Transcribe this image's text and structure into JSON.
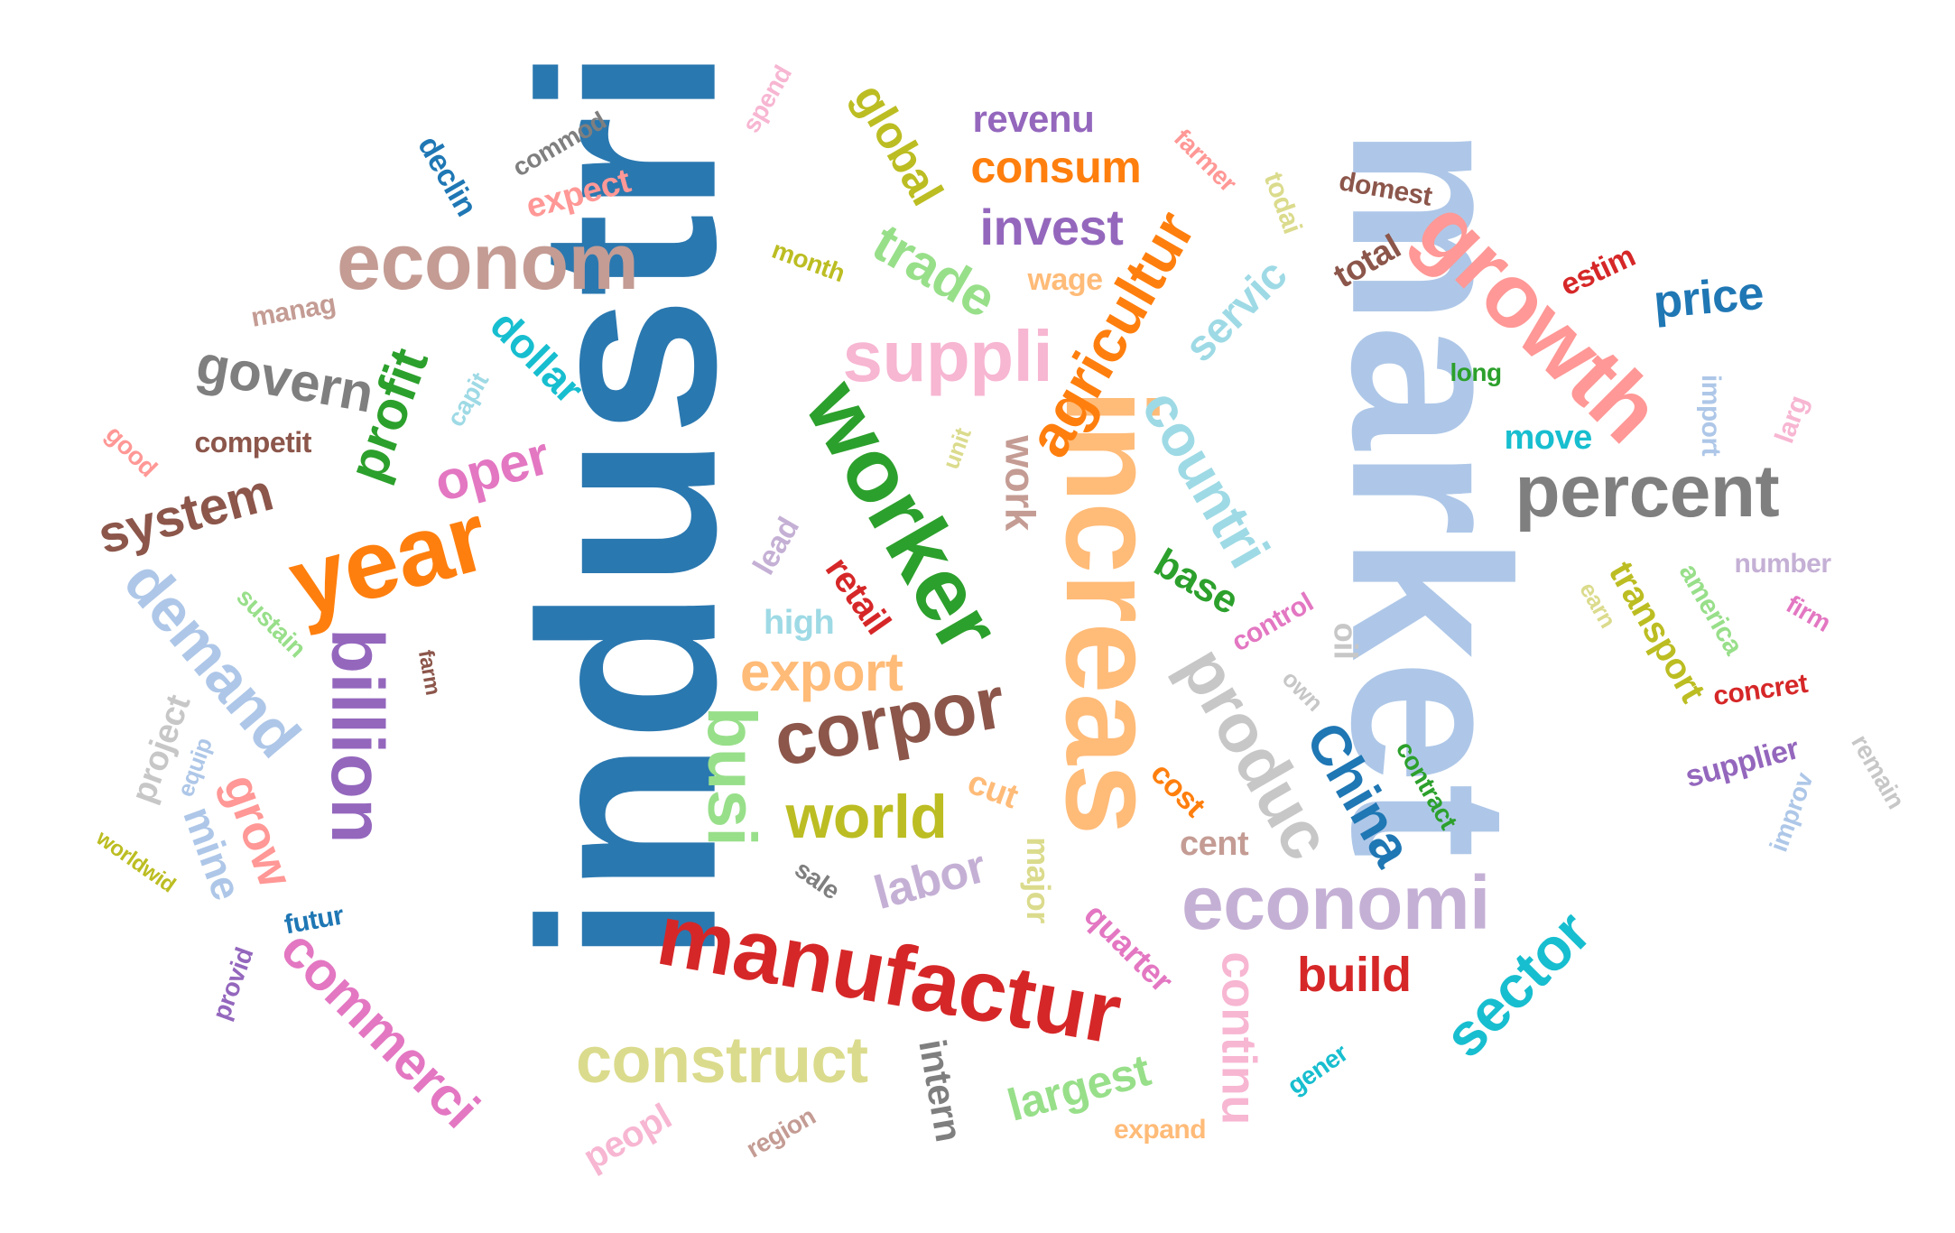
{
  "words": [
    {
      "text": "industri",
      "color": "#2a78b0"
    },
    {
      "text": "market",
      "color": "#aec7e8"
    },
    {
      "text": "increas",
      "color": "#ffbb78"
    },
    {
      "text": "worker",
      "color": "#2ca02c"
    },
    {
      "text": "year",
      "color": "#ff7f0e"
    },
    {
      "text": "growth",
      "color": "#ff9896"
    },
    {
      "text": "manufactur",
      "color": "#d62728"
    },
    {
      "text": "econom",
      "color": "#c49c94"
    },
    {
      "text": "percent",
      "color": "#7f7f7f"
    },
    {
      "text": "economi",
      "color": "#c5b0d5"
    },
    {
      "text": "corpor",
      "color": "#8c564b"
    },
    {
      "text": "billion",
      "color": "#9467bd"
    },
    {
      "text": "suppli",
      "color": "#f7b6d2"
    },
    {
      "text": "construct",
      "color": "#dbdb8d"
    },
    {
      "text": "produc",
      "color": "#c7c7c7"
    },
    {
      "text": "demand",
      "color": "#aec7e8"
    },
    {
      "text": "countri",
      "color": "#9edae5"
    },
    {
      "text": "agricultur",
      "color": "#ff7f0e"
    },
    {
      "text": "busi",
      "color": "#98df8a"
    },
    {
      "text": "world",
      "color": "#bcbd22"
    },
    {
      "text": "sector",
      "color": "#17becf"
    },
    {
      "text": "China",
      "color": "#1f77b4"
    },
    {
      "text": "commerci",
      "color": "#e377c2"
    },
    {
      "text": "trade",
      "color": "#98df8a"
    },
    {
      "text": "export",
      "color": "#ffbb78"
    },
    {
      "text": "system",
      "color": "#8c564b"
    },
    {
      "text": "oper",
      "color": "#e377c2"
    },
    {
      "text": "profit",
      "color": "#2ca02c"
    },
    {
      "text": "govern",
      "color": "#7f7f7f"
    },
    {
      "text": "invest",
      "color": "#9467bd"
    },
    {
      "text": "price",
      "color": "#1f77b4"
    },
    {
      "text": "consum",
      "color": "#ff7f0e"
    },
    {
      "text": "continu",
      "color": "#f7b6d2"
    },
    {
      "text": "labor",
      "color": "#c5b0d5"
    },
    {
      "text": "build",
      "color": "#d62728"
    },
    {
      "text": "global",
      "color": "#bcbd22"
    },
    {
      "text": "largest",
      "color": "#98df8a"
    },
    {
      "text": "grow",
      "color": "#ff9896"
    },
    {
      "text": "servic",
      "color": "#9edae5"
    },
    {
      "text": "work",
      "color": "#c49c94"
    },
    {
      "text": "revenu",
      "color": "#9467bd"
    },
    {
      "text": "dollar",
      "color": "#17becf"
    },
    {
      "text": "mine",
      "color": "#aec7e8"
    },
    {
      "text": "base",
      "color": "#2ca02c"
    },
    {
      "text": "intern",
      "color": "#7f7f7f"
    },
    {
      "text": "transport",
      "color": "#bcbd22"
    },
    {
      "text": "retail",
      "color": "#d62728"
    },
    {
      "text": "quarter",
      "color": "#e377c2"
    },
    {
      "text": "major",
      "color": "#dbdb8d"
    },
    {
      "text": "total",
      "color": "#8c564b"
    },
    {
      "text": "expect",
      "color": "#ff9896"
    },
    {
      "text": "cut",
      "color": "#ffbb78"
    },
    {
      "text": "project",
      "color": "#c7c7c7"
    },
    {
      "text": "high",
      "color": "#9edae5"
    },
    {
      "text": "cent",
      "color": "#c49c94"
    },
    {
      "text": "supplier",
      "color": "#9467bd"
    },
    {
      "text": "declin",
      "color": "#1f77b4"
    },
    {
      "text": "move",
      "color": "#17becf"
    },
    {
      "text": "america",
      "color": "#98df8a"
    },
    {
      "text": "lead",
      "color": "#c5b0d5"
    },
    {
      "text": "estim",
      "color": "#d62728"
    },
    {
      "text": "concret",
      "color": "#d62728"
    },
    {
      "text": "peopl",
      "color": "#f7b6d2"
    },
    {
      "text": "competit",
      "color": "#8c564b"
    },
    {
      "text": "domest",
      "color": "#8c564b"
    },
    {
      "text": "manag",
      "color": "#c49c94"
    },
    {
      "text": "contract",
      "color": "#2ca02c"
    },
    {
      "text": "cost",
      "color": "#ff7f0e"
    },
    {
      "text": "todai",
      "color": "#dbdb8d"
    },
    {
      "text": "number",
      "color": "#c5b0d5"
    },
    {
      "text": "futur",
      "color": "#1f77b4"
    },
    {
      "text": "control",
      "color": "#e377c2"
    },
    {
      "text": "import",
      "color": "#aec7e8"
    },
    {
      "text": "sustain",
      "color": "#98df8a"
    },
    {
      "text": "month",
      "color": "#bcbd22"
    },
    {
      "text": "wage",
      "color": "#ffbb78"
    },
    {
      "text": "farmer",
      "color": "#ff9896"
    },
    {
      "text": "commod",
      "color": "#7f7f7f"
    },
    {
      "text": "long",
      "color": "#2ca02c"
    },
    {
      "text": "remain",
      "color": "#c7c7c7"
    },
    {
      "text": "improv",
      "color": "#aec7e8"
    },
    {
      "text": "oil",
      "color": "#c7c7c7"
    },
    {
      "text": "expand",
      "color": "#ffbb78"
    },
    {
      "text": "gener",
      "color": "#17becf"
    },
    {
      "text": "region",
      "color": "#c49c94"
    },
    {
      "text": "provid",
      "color": "#9467bd"
    },
    {
      "text": "larg",
      "color": "#f7b6d2"
    },
    {
      "text": "worldwid",
      "color": "#bcbd22"
    },
    {
      "text": "firm",
      "color": "#e377c2"
    },
    {
      "text": "capit",
      "color": "#9edae5"
    },
    {
      "text": "spend",
      "color": "#f7b6d2"
    },
    {
      "text": "earn",
      "color": "#dbdb8d"
    },
    {
      "text": "unit",
      "color": "#dbdb8d"
    },
    {
      "text": "own",
      "color": "#c7c7c7"
    },
    {
      "text": "farm",
      "color": "#8c564b"
    },
    {
      "text": "equip",
      "color": "#aec7e8"
    },
    {
      "text": "sale",
      "color": "#7f7f7f"
    },
    {
      "text": "good",
      "color": "#ff9896"
    }
  ]
}
